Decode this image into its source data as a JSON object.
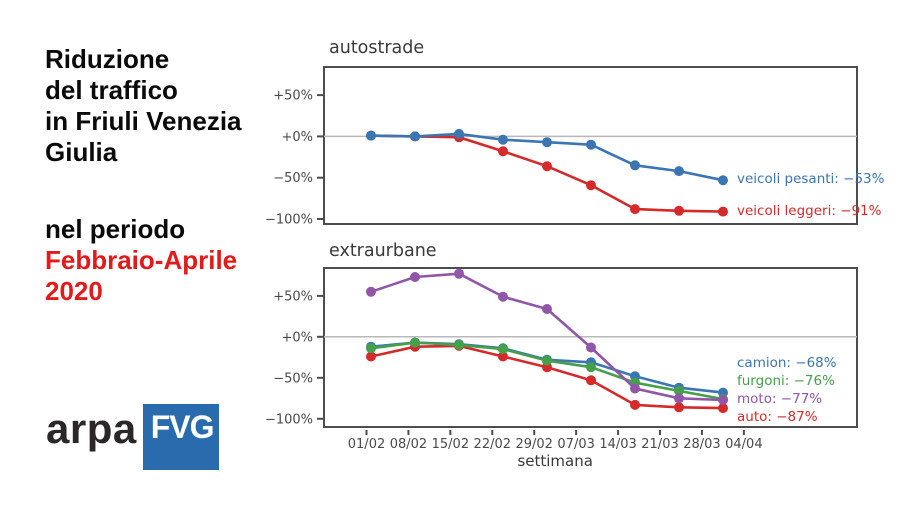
{
  "left_panel": {
    "title_lines": [
      "Riduzione",
      "del traffico",
      "in Friuli Venezia",
      "Giulia"
    ],
    "subtitle": "nel periodo",
    "period_lines": [
      "Febbraio-Aprile",
      "2020"
    ],
    "period_color": "#e41a1a",
    "logo": {
      "text": "arpa",
      "badge": "FVG",
      "badge_color": "#2a6bad"
    }
  },
  "chart_data": [
    {
      "type": "line",
      "title": "autostrade",
      "categories": [
        "01/02",
        "08/02",
        "15/02",
        "22/02",
        "29/02",
        "07/03",
        "14/03",
        "21/03",
        "28/03"
      ],
      "x_ticks": [
        "01/02",
        "08/02",
        "15/02",
        "22/02",
        "29/02",
        "07/03",
        "14/03",
        "21/03",
        "28/03",
        "04/04"
      ],
      "xlabel": "",
      "ylim": [
        -106,
        84
      ],
      "ytick_values": [
        50,
        0,
        -50,
        -100
      ],
      "ylabel_ticks": [
        "+50%",
        "+0%",
        "−50%",
        "−100%"
      ],
      "grid": "zero-line-only",
      "legend_position": "right-of-last-point",
      "series": [
        {
          "name": "veicoli pesanti",
          "color": "#3b76b3",
          "final_label": "veicoli pesanti: −53%",
          "values": [
            1,
            0,
            3,
            -4,
            -7,
            -10,
            -35,
            -42,
            -53
          ]
        },
        {
          "name": "veicoli leggeri",
          "color": "#d62a2a",
          "final_label": "veicoli leggeri: −91%",
          "values": [
            1,
            0,
            -1,
            -18,
            -36,
            -59,
            -88,
            -90,
            -91
          ]
        }
      ]
    },
    {
      "type": "line",
      "title": "extraurbane",
      "categories": [
        "01/02",
        "08/02",
        "15/02",
        "22/02",
        "29/02",
        "07/03",
        "14/03",
        "21/03",
        "28/03"
      ],
      "x_ticks": [
        "01/02",
        "08/02",
        "15/02",
        "22/02",
        "29/02",
        "07/03",
        "14/03",
        "21/03",
        "28/03",
        "04/04"
      ],
      "xlabel": "settimana",
      "ylim": [
        -110,
        84
      ],
      "ytick_values": [
        50,
        0,
        -50,
        -100
      ],
      "ylabel_ticks": [
        "+50%",
        "+0%",
        "−50%",
        "−100%"
      ],
      "grid": "zero-line-only",
      "legend_position": "right-stacked",
      "series": [
        {
          "name": "camion",
          "color": "#3b76b3",
          "final_label": "camion: −68%",
          "values": [
            -12,
            -7,
            -9,
            -14,
            -28,
            -31,
            -48,
            -62,
            -68
          ]
        },
        {
          "name": "furgoni",
          "color": "#44a049",
          "final_label": "furgoni: −76%",
          "values": [
            -14,
            -7,
            -10,
            -15,
            -29,
            -37,
            -56,
            -66,
            -76
          ]
        },
        {
          "name": "moto",
          "color": "#9156a8",
          "final_label": "moto: −77%",
          "values": [
            55,
            73,
            77,
            49,
            34,
            -13,
            -63,
            -75,
            -77
          ]
        },
        {
          "name": "auto",
          "color": "#d62a2a",
          "final_label": "auto: −87%",
          "values": [
            -24,
            -12,
            -11,
            -24,
            -37,
            -53,
            -83,
            -86,
            -87
          ]
        }
      ]
    }
  ]
}
